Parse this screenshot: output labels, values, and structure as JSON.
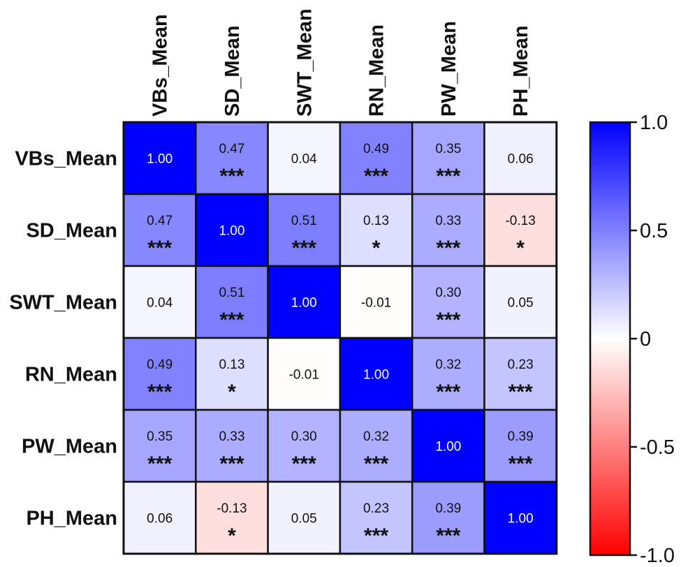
{
  "chart_data": {
    "type": "heatmap",
    "title": "",
    "rows": [
      "VBs_Mean",
      "SD_Mean",
      "SWT_Mean",
      "RN_Mean",
      "PW_Mean",
      "PH_Mean"
    ],
    "columns": [
      "VBs_Mean",
      "SD_Mean",
      "SWT_Mean",
      "RN_Mean",
      "PW_Mean",
      "PH_Mean"
    ],
    "values": [
      [
        1.0,
        0.47,
        0.04,
        0.49,
        0.35,
        0.06
      ],
      [
        0.47,
        1.0,
        0.51,
        0.13,
        0.33,
        -0.13
      ],
      [
        0.04,
        0.51,
        1.0,
        -0.01,
        0.3,
        0.05
      ],
      [
        0.49,
        0.13,
        -0.01,
        1.0,
        0.32,
        0.23
      ],
      [
        0.35,
        0.33,
        0.3,
        0.32,
        1.0,
        0.39
      ],
      [
        0.06,
        -0.13,
        0.05,
        0.23,
        0.39,
        1.0
      ]
    ],
    "value_labels": [
      [
        "1.00",
        "0.47",
        "0.04",
        "0.49",
        "0.35",
        "0.06"
      ],
      [
        "0.47",
        "1.00",
        "0.51",
        "0.13",
        "0.33",
        "-0.13"
      ],
      [
        "0.04",
        "0.51",
        "1.00",
        "-0.01",
        "0.30",
        "0.05"
      ],
      [
        "0.49",
        "0.13",
        "-0.01",
        "1.00",
        "0.32",
        "0.23"
      ],
      [
        "0.35",
        "0.33",
        "0.30",
        "0.32",
        "1.00",
        "0.39"
      ],
      [
        "0.06",
        "-0.13",
        "0.05",
        "0.23",
        "0.39",
        "1.00"
      ]
    ],
    "significance": [
      [
        "",
        "***",
        "",
        "***",
        "***",
        ""
      ],
      [
        "***",
        "",
        "***",
        "*",
        "***",
        "*"
      ],
      [
        "",
        "***",
        "",
        "",
        "***",
        ""
      ],
      [
        "***",
        "*",
        "",
        "",
        "***",
        "***"
      ],
      [
        "***",
        "***",
        "***",
        "***",
        "",
        "***"
      ],
      [
        "",
        "*",
        "",
        "***",
        "***",
        ""
      ]
    ],
    "colorbar": {
      "range": [
        -1.0,
        1.0
      ],
      "ticks": [
        1.0,
        0.5,
        0,
        -0.5,
        -1.0
      ],
      "tick_labels": [
        "1.0",
        "0.5",
        "0",
        "-0.5",
        "-1.0"
      ],
      "colors": {
        "high": "#0000ff",
        "mid": "#ffffff",
        "low": "#ff0000"
      }
    }
  }
}
